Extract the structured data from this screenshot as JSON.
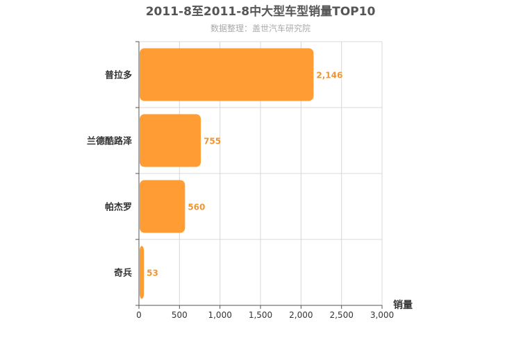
{
  "colors": {
    "bar": "#ff9c33",
    "data_label": "#f0962e",
    "title": "#555555",
    "subtitle": "#aaaaaa",
    "axis_text": "#333333",
    "grid": "#d8d8d8",
    "axis_line": "#555555"
  },
  "chart_data": {
    "type": "bar",
    "orientation": "horizontal",
    "title": "2011-8至2011-8中大型车型销量TOP10",
    "subtitle": "数据整理：盖世汽车研究院",
    "xlabel": "销量",
    "ylabel": "",
    "categories": [
      "普拉多",
      "兰德酷路泽",
      "帕杰罗",
      "奇兵"
    ],
    "values": [
      2146,
      755,
      560,
      53
    ],
    "value_labels": [
      "2,146",
      "755",
      "560",
      "53"
    ],
    "xlim": [
      0,
      3000
    ],
    "x_ticks": [
      0,
      500,
      1000,
      1500,
      2000,
      2500,
      3000
    ],
    "x_tick_labels": [
      "0",
      "500",
      "1,000",
      "1,500",
      "2,000",
      "2,500",
      "3,000"
    ],
    "grid": true,
    "legend": "none"
  }
}
